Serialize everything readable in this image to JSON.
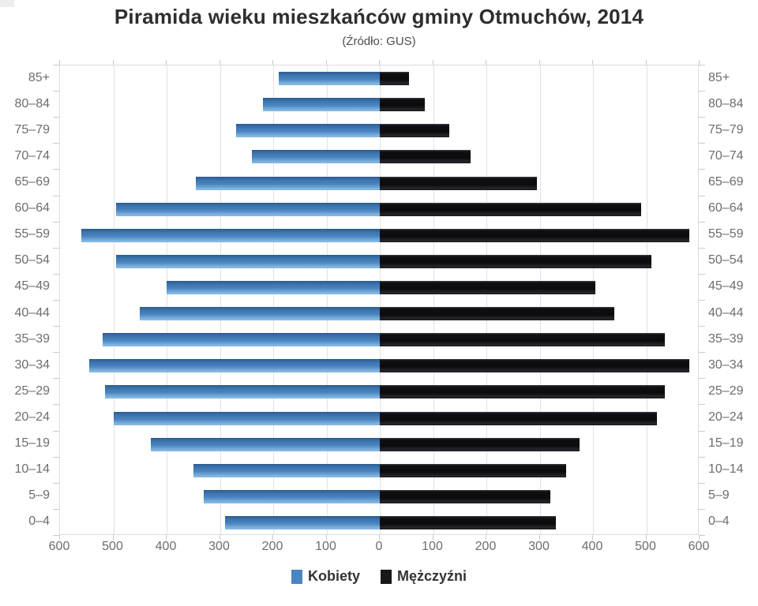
{
  "title": "Piramida wieku mieszkańców gminy Otmuchów, 2014",
  "subtitle": "(Źródło: GUS)",
  "legend": {
    "items": [
      {
        "label": "Kobiety",
        "color": "#4a86c0"
      },
      {
        "label": "Mężczyźni",
        "color": "#17171c"
      }
    ]
  },
  "colors": {
    "female_bar": "#4a86c0",
    "male_bar": "#17171c",
    "gridline": "#e2e2e2",
    "axis_border": "#dcdcdc",
    "tick": "#c9c9c9",
    "axis_label": "#6d6d6d",
    "title": "#2e2e2e"
  },
  "chart_data": {
    "type": "bar",
    "subtype": "population-pyramid",
    "title": "Piramida wieku mieszkańców gminy Otmuchów, 2014",
    "subtitle": "(Źródło: GUS)",
    "grid": true,
    "legend_position": "bottom",
    "categories": [
      "85+",
      "80–84",
      "75–79",
      "70–74",
      "65–69",
      "60–64",
      "55–59",
      "50–54",
      "45–49",
      "40–44",
      "35–39",
      "30–34",
      "25–29",
      "20–24",
      "15–19",
      "10–14",
      "5–9",
      "0–4"
    ],
    "series": [
      {
        "name": "Kobiety",
        "side": "left",
        "color": "#4a86c0",
        "values": [
          190,
          220,
          270,
          240,
          345,
          495,
          560,
          495,
          400,
          450,
          520,
          545,
          515,
          500,
          430,
          350,
          330,
          290
        ]
      },
      {
        "name": "Mężczyźni",
        "side": "right",
        "color": "#17171c",
        "values": [
          55,
          85,
          130,
          170,
          295,
          490,
          580,
          510,
          405,
          440,
          535,
          580,
          535,
          520,
          375,
          350,
          320,
          330
        ]
      }
    ],
    "x_axis": {
      "max_each_side": 600,
      "tick_interval": 100,
      "tick_labels": [
        "600",
        "500",
        "400",
        "300",
        "200",
        "100",
        "0",
        "100",
        "200",
        "300",
        "400",
        "500",
        "600"
      ]
    }
  }
}
